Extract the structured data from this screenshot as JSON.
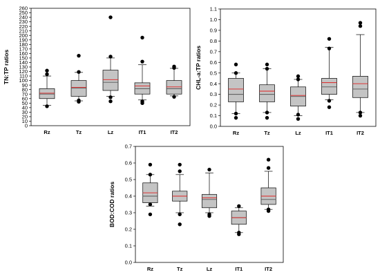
{
  "chart_data": [
    {
      "type": "box",
      "ylabel": "TN:TP ratios",
      "ylim": [
        0,
        260
      ],
      "yticks": [
        0,
        10,
        20,
        30,
        40,
        50,
        60,
        70,
        80,
        90,
        100,
        110,
        120,
        130,
        140,
        150,
        160,
        170,
        180,
        190,
        200,
        210,
        220,
        230,
        240,
        250,
        260
      ],
      "categories": [
        "Rz",
        "Tz",
        "Lz",
        "IT1",
        "IT2"
      ],
      "boxes": [
        {
          "category": "Rz",
          "whisker_low": 45,
          "q1": 60,
          "median": 70,
          "mean": 72,
          "q3": 82,
          "whisker_high": 110,
          "outliers": [
            43,
            114,
            122
          ]
        },
        {
          "category": "Tz",
          "whisker_low": 55,
          "q1": 65,
          "median": 83,
          "mean": 85,
          "q3": 100,
          "whisker_high": 118,
          "outliers": [
            53,
            56,
            119,
            155
          ]
        },
        {
          "category": "Lz",
          "whisker_low": 65,
          "q1": 78,
          "median": 96,
          "mean": 102,
          "q3": 123,
          "whisker_high": 150,
          "outliers": [
            54,
            63,
            153,
            240
          ]
        },
        {
          "category": "IT1",
          "whisker_low": 57,
          "q1": 70,
          "median": 82,
          "mean": 88,
          "q3": 95,
          "whisker_high": 135,
          "outliers": [
            50,
            54,
            142,
            195
          ]
        },
        {
          "category": "IT2",
          "whisker_low": 66,
          "q1": 70,
          "median": 82,
          "mean": 86,
          "q3": 100,
          "whisker_high": 127,
          "outliers": [
            64,
            128,
            131
          ]
        }
      ],
      "median_color": "#555555",
      "mean_color": "#e02020",
      "box_fill": "#c4c4c4"
    },
    {
      "type": "box",
      "ylabel": "CHL-a:TP ratios",
      "ylim": [
        0,
        1.1
      ],
      "yticks": [
        0.0,
        0.1,
        0.2,
        0.3,
        0.4,
        0.5,
        0.6,
        0.7,
        0.8,
        0.9,
        1.0,
        1.1
      ],
      "categories": [
        "Rz",
        "Tz",
        "Lz",
        "IT1",
        "IT2"
      ],
      "boxes": [
        {
          "category": "Rz",
          "whisker_low": 0.12,
          "q1": 0.23,
          "median": 0.3,
          "mean": 0.35,
          "q3": 0.45,
          "whisker_high": 0.5,
          "outliers": [
            0.08,
            0.12,
            0.5,
            0.58
          ]
        },
        {
          "category": "Tz",
          "whisker_low": 0.13,
          "q1": 0.23,
          "median": 0.3,
          "mean": 0.33,
          "q3": 0.39,
          "whisker_high": 0.54,
          "outliers": [
            0.08,
            0.13,
            0.54,
            0.58
          ]
        },
        {
          "category": "Lz",
          "whisker_low": 0.1,
          "q1": 0.19,
          "median": 0.28,
          "mean": 0.29,
          "q3": 0.37,
          "whisker_high": 0.44,
          "outliers": [
            0.07,
            0.11,
            0.44,
            0.47
          ]
        },
        {
          "category": "IT1",
          "whisker_low": 0.25,
          "q1": 0.3,
          "median": 0.37,
          "mean": 0.41,
          "q3": 0.45,
          "whisker_high": 0.74,
          "outliers": [
            0.18,
            0.24,
            0.73,
            0.82
          ]
        },
        {
          "category": "IT2",
          "whisker_low": 0.13,
          "q1": 0.27,
          "median": 0.35,
          "mean": 0.4,
          "q3": 0.47,
          "whisker_high": 0.86,
          "outliers": [
            0.1,
            0.13,
            0.94,
            0.97
          ]
        }
      ],
      "median_color": "#555555",
      "mean_color": "#e02020",
      "box_fill": "#c4c4c4"
    },
    {
      "type": "box",
      "ylabel": "BOD:COD ratios",
      "ylim": [
        0,
        0.7
      ],
      "yticks": [
        0.0,
        0.1,
        0.2,
        0.3,
        0.4,
        0.5,
        0.6,
        0.7
      ],
      "categories": [
        "Rz",
        "Tz",
        "Lz",
        "IT1",
        "IT2"
      ],
      "boxes": [
        {
          "category": "Rz",
          "whisker_low": 0.34,
          "q1": 0.36,
          "median": 0.4,
          "mean": 0.42,
          "q3": 0.48,
          "whisker_high": 0.53,
          "outliers": [
            0.29,
            0.35,
            0.53,
            0.59
          ]
        },
        {
          "category": "Tz",
          "whisker_low": 0.3,
          "q1": 0.37,
          "median": 0.4,
          "mean": 0.4,
          "q3": 0.43,
          "whisker_high": 0.53,
          "outliers": [
            0.23,
            0.29,
            0.55,
            0.59
          ]
        },
        {
          "category": "Lz",
          "whisker_low": 0.3,
          "q1": 0.33,
          "median": 0.38,
          "mean": 0.39,
          "q3": 0.41,
          "whisker_high": 0.54,
          "outliers": [
            0.28,
            0.29,
            0.56
          ]
        },
        {
          "category": "IT1",
          "whisker_low": 0.18,
          "q1": 0.23,
          "median": 0.27,
          "mean": 0.27,
          "q3": 0.31,
          "whisker_high": 0.33,
          "outliers": [
            0.17,
            0.18,
            0.34
          ]
        },
        {
          "category": "IT2",
          "whisker_low": 0.32,
          "q1": 0.35,
          "median": 0.38,
          "mean": 0.4,
          "q3": 0.45,
          "whisker_high": 0.55,
          "outliers": [
            0.31,
            0.32,
            0.57,
            0.62
          ]
        }
      ],
      "median_color": "#555555",
      "mean_color": "#e02020",
      "box_fill": "#c4c4c4"
    }
  ]
}
